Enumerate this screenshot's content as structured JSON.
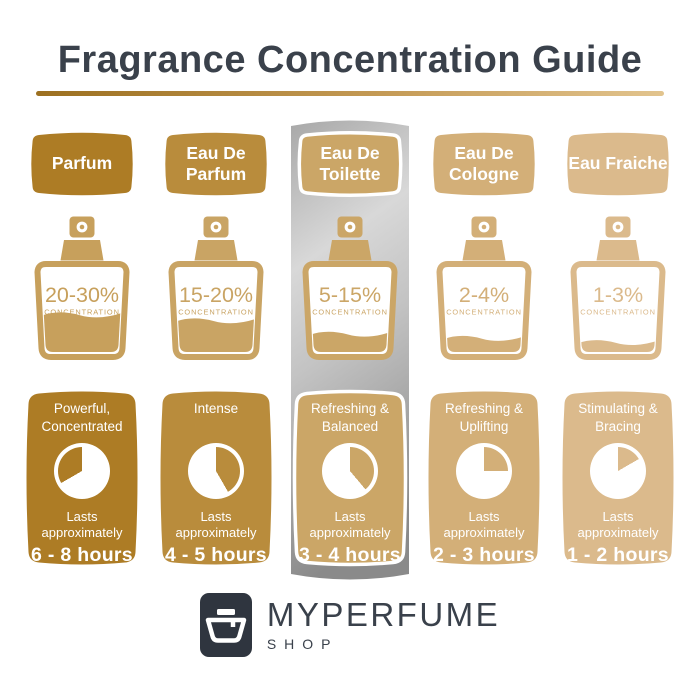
{
  "title": "Fragrance Concentration Guide",
  "accents": {
    "title_color": "#3A414B",
    "underline_left": "#9C7020",
    "underline_right": "#E2C48E",
    "logo_square": "#2F353F"
  },
  "highlight_panel": {
    "column": "eau-de-toilette",
    "gradient": [
      "#A8A8A8",
      "#D8D8D8",
      "#C3C3C3",
      "#8A8A8A"
    ]
  },
  "columns": [
    {
      "id": "parfum",
      "badge": "Parfum",
      "concentration": "20-30%",
      "concentration_label": "CONCENTRATION",
      "fill_percent": 45,
      "color_main": "#AD7C25",
      "color_accent": "#C7A05C",
      "highlighted": false,
      "card": {
        "quality": "Powerful, Concentrated",
        "lasts": "Lasts approximately",
        "duration": "6 - 8 hours",
        "clock_gold_start": 240,
        "clock_gold_end": 360
      }
    },
    {
      "id": "eau-de-parfum",
      "badge": "Eau De Parfum",
      "concentration": "15-20%",
      "concentration_label": "CONCENTRATION",
      "fill_percent": 38,
      "color_main": "#B98C3C",
      "color_accent": "#C9A464",
      "highlighted": false,
      "card": {
        "quality": "Intense",
        "lasts": "Lasts approximately",
        "duration": "4 - 5 hours",
        "clock_gold_start": 0,
        "clock_gold_end": 150
      }
    },
    {
      "id": "eau-de-toilette",
      "badge": "Eau De Toilette",
      "concentration": "5-15%",
      "concentration_label": "CONCENTRATION",
      "fill_percent": 22,
      "color_main": "#CBA667",
      "color_accent": "#CBA667",
      "highlighted": true,
      "card": {
        "quality": "Refreshing & Balanced",
        "lasts": "Lasts approximately",
        "duration": "3 - 4 hours",
        "clock_gold_start": 0,
        "clock_gold_end": 140
      }
    },
    {
      "id": "eau-de-cologne",
      "badge": "Eau De Cologne",
      "concentration": "2-4%",
      "concentration_label": "CONCENTRATION",
      "fill_percent": 17,
      "color_main": "#D3AF78",
      "color_accent": "#D3AF78",
      "highlighted": false,
      "card": {
        "quality": "Refreshing & Uplifting",
        "lasts": "Lasts approximately",
        "duration": "2 - 3 hours",
        "clock_gold_start": 0,
        "clock_gold_end": 90
      }
    },
    {
      "id": "eau-fraiche",
      "badge": "Eau Fraiche",
      "concentration": "1-3%",
      "concentration_label": "CONCENTRATION",
      "fill_percent": 12,
      "color_main": "#DBBA8C",
      "color_accent": "#DBBA8C",
      "highlighted": false,
      "card": {
        "quality": "Stimulating & Bracing",
        "lasts": "Lasts approximately",
        "duration": "1 - 2 hours",
        "clock_gold_start": 0,
        "clock_gold_end": 60
      }
    }
  ],
  "logo": {
    "brand": "MYPERFUME",
    "sub": "SHOP"
  }
}
